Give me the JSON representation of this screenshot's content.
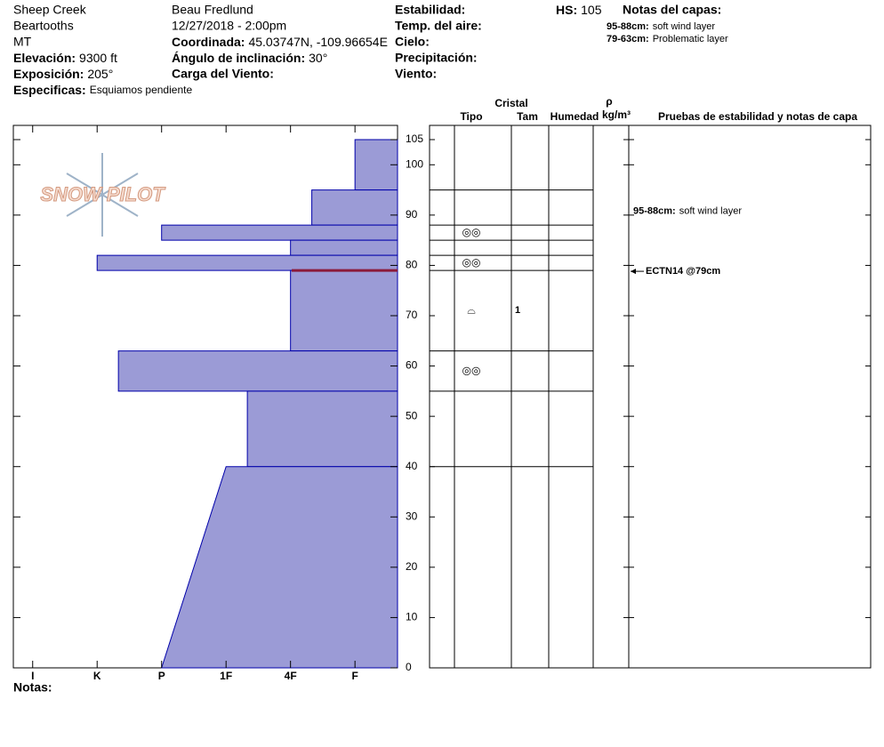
{
  "header": {
    "location": [
      "Sheep Creek",
      "Beartooths",
      "MT"
    ],
    "observer": "Beau  Fredlund",
    "datetime": "12/27/2018 - 2:00pm",
    "fields_left": [
      {
        "label": "Elevación:",
        "value": "9300 ft"
      },
      {
        "label": "Exposición:",
        "value": "205°"
      },
      {
        "label": "Especificas:",
        "value": "Esquiamos pendiente"
      }
    ],
    "fields_mid": [
      {
        "label": "Coordinada:",
        "value": "45.03747N, -109.96654E"
      },
      {
        "label": "Ángulo de inclinación:",
        "value": "30°"
      },
      {
        "label": "Carga del Viento:",
        "value": ""
      }
    ],
    "fields_right": [
      "Estabilidad:",
      "Temp. del aire:",
      "Cielo:",
      "Precipitación:",
      "Viento:"
    ],
    "hs": {
      "label": "HS:",
      "value": "105"
    },
    "layer_notes_title": "Notas del capas:",
    "layer_notes": [
      {
        "range": "95-88cm:",
        "text": "soft wind layer"
      },
      {
        "range": "79-63cm:",
        "text": "Problematic layer"
      }
    ]
  },
  "logo": "SNOW PILOT",
  "table_headers": {
    "crystal": "Cristal",
    "type": "Tipo",
    "size": "Tam",
    "moisture": "Humedad",
    "rho": "ρ",
    "density": "kg/m³",
    "tests": "Pruebas de estabilidad y notas de capa"
  },
  "footer": "Notas:",
  "chart_data": {
    "type": "snow-profile",
    "ylim": [
      0,
      105
    ],
    "yticks": [
      0,
      10,
      20,
      30,
      40,
      50,
      60,
      70,
      80,
      90,
      100,
      105
    ],
    "xlim": [
      6.3,
      0.34
    ],
    "xticks": [
      {
        "value": 6,
        "label": "I"
      },
      {
        "value": 5,
        "label": "K"
      },
      {
        "value": 4,
        "label": "P"
      },
      {
        "value": 3,
        "label": "1F"
      },
      {
        "value": 2,
        "label": "4F"
      },
      {
        "value": 1,
        "label": "F"
      }
    ],
    "color": "#9b9bd6",
    "edge_color": "#0000aa",
    "layers": [
      {
        "top": 105,
        "bottom": 95,
        "hardness_top": 1,
        "hardness_bottom": 1
      },
      {
        "top": 95,
        "bottom": 88,
        "hardness_top": 1.67,
        "hardness_bottom": 1.67
      },
      {
        "top": 88,
        "bottom": 85,
        "hardness_top": 4,
        "hardness_bottom": 4,
        "grain_type": "◎◎"
      },
      {
        "top": 85,
        "bottom": 82,
        "hardness_top": 2,
        "hardness_bottom": 2
      },
      {
        "top": 82,
        "bottom": 79,
        "hardness_top": 5,
        "hardness_bottom": 5,
        "grain_type": "◎◎"
      },
      {
        "top": 79,
        "bottom": 63,
        "hardness_top": 2,
        "hardness_bottom": 2,
        "grain_type": "⌓",
        "grain_size": "1"
      },
      {
        "top": 63,
        "bottom": 55,
        "hardness_top": 4.67,
        "hardness_bottom": 4.67,
        "grain_type": "◎◎"
      },
      {
        "top": 55,
        "bottom": 40,
        "hardness_top": 2.67,
        "hardness_bottom": 2.67
      },
      {
        "top": 40,
        "bottom": 0,
        "hardness_top": 3,
        "hardness_bottom": 4
      }
    ],
    "marker": {
      "height": 79,
      "color": "#8b1a3a"
    },
    "layer_comments": [
      {
        "top": 95,
        "bottom": 88,
        "range": "95-88cm:",
        "text": "soft wind layer"
      }
    ],
    "tests": [
      {
        "height": 79,
        "label": "ECTN14 @79cm"
      }
    ]
  }
}
